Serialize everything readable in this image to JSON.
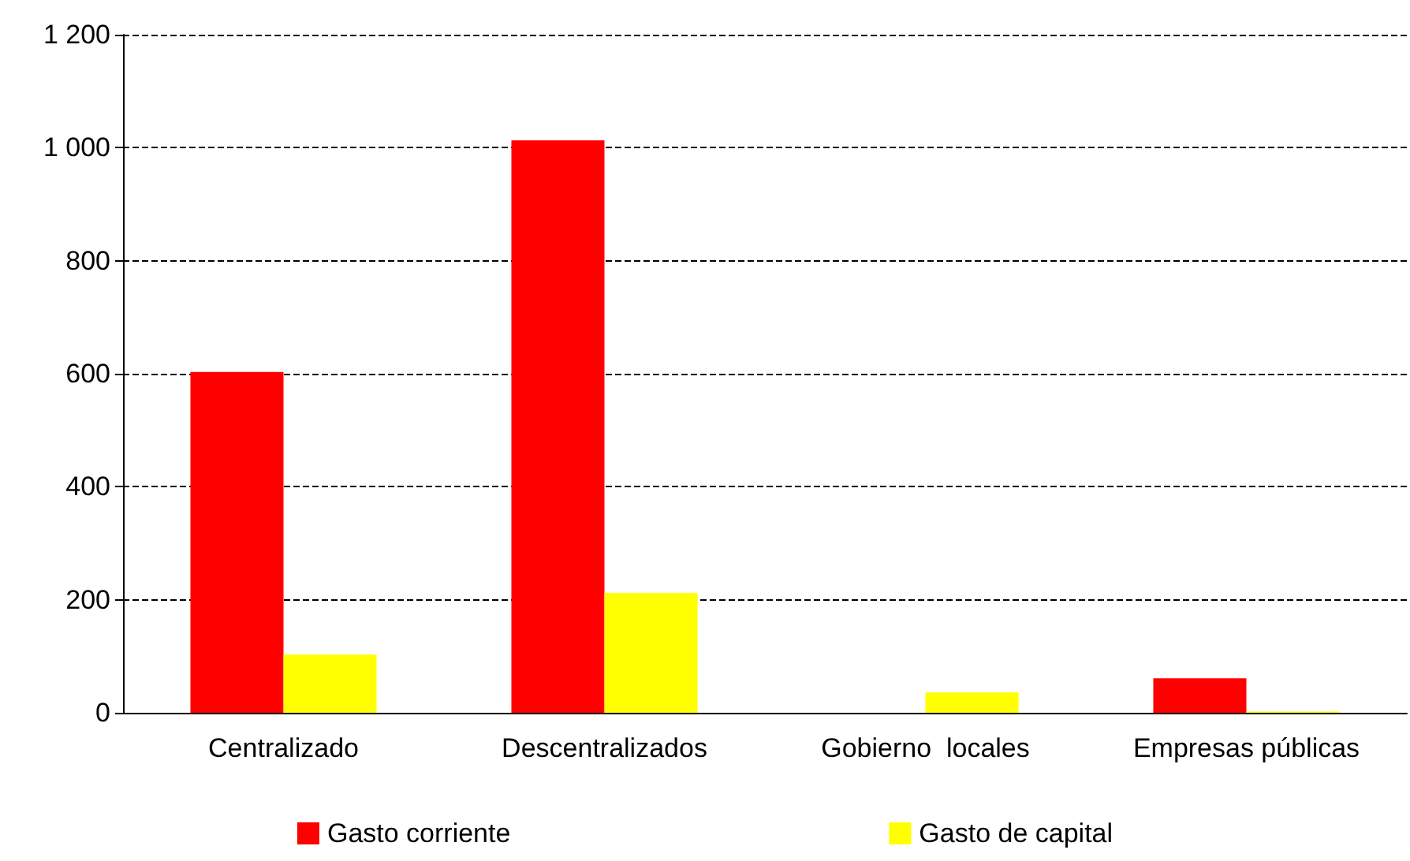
{
  "chart_data": {
    "type": "bar",
    "categories": [
      "Centralizado",
      "Descentralizados",
      "Gobierno  locales",
      "Empresas públicas"
    ],
    "series": [
      {
        "name": "Gasto corriente",
        "color": "#ff0000",
        "values": [
          603,
          1013,
          0,
          61
        ]
      },
      {
        "name": "Gasto de capital",
        "color": "#ffff00",
        "values": [
          103,
          212,
          36,
          2
        ]
      }
    ],
    "ylim": [
      0,
      1200
    ],
    "yticks": [
      0,
      200,
      400,
      600,
      800,
      {
        "value": 1000,
        "label": "1 000"
      },
      {
        "value": 1200,
        "label": "1 200"
      }
    ],
    "grid": "y",
    "line_style": "dashed",
    "legend": "bottom"
  }
}
